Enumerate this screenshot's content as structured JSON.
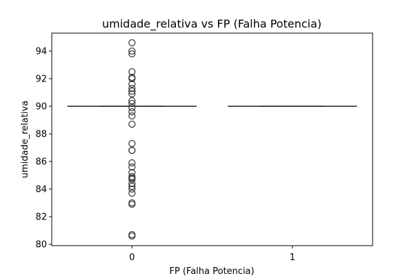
{
  "chart_data": {
    "type": "box",
    "title": "umidade_relativa vs FP (Falha Potencia)",
    "xlabel": "FP (Falha Potencia)",
    "ylabel": "umidade_relativa",
    "categories": [
      "0",
      "1"
    ],
    "ylim": [
      79.9,
      95.3
    ],
    "yticks": [
      80,
      82,
      84,
      86,
      88,
      90,
      92,
      94
    ],
    "grid": false,
    "boxes": [
      {
        "category": "0",
        "whisker_low": 90.0,
        "q1": 90.0,
        "median": 90.0,
        "q3": 90.0,
        "whisker_high": 90.0,
        "outliers": [
          94.6,
          94.0,
          93.8,
          92.5,
          92.1,
          92.0,
          91.6,
          91.3,
          91.1,
          90.9,
          90.4,
          90.2,
          89.9,
          89.6,
          89.3,
          88.7,
          87.3,
          86.8,
          86.8,
          85.9,
          85.6,
          85.2,
          84.9,
          84.8,
          84.7,
          84.4,
          84.2,
          84.0,
          83.7,
          83.0,
          82.9,
          80.7,
          80.6
        ]
      },
      {
        "category": "1",
        "whisker_low": 90.0,
        "q1": 90.0,
        "median": 90.0,
        "q3": 90.0,
        "whisker_high": 90.0,
        "outliers": []
      }
    ],
    "colors": {
      "line": "#3f3f3f",
      "axis": "#000000"
    }
  }
}
